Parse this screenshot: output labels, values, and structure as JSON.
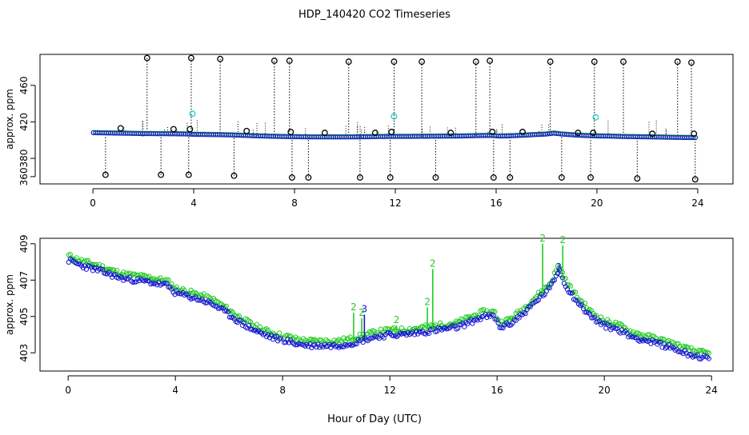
{
  "title": "HDP_140420  CO2 Timeseries",
  "xlabel": "Hour of Day (UTC)",
  "colors": {
    "black": "#000000",
    "green": "#22cc22",
    "blue": "#1515d0",
    "cyan": "#22cccc"
  },
  "chart_data": [
    {
      "type": "scatter",
      "name": "top-panel",
      "title": "HDP_140420  CO2 Timeseries",
      "xlabel": "",
      "ylabel": "approx. ppm",
      "xlim": [
        -2.1,
        25.4
      ],
      "ylim": [
        352,
        494
      ],
      "x_ticks": [
        0,
        4,
        8,
        12,
        16,
        20,
        24
      ],
      "y_ticks": [
        380,
        420,
        460,
        360
      ],
      "series": [
        {
          "name": "black spikes (high)",
          "color": "#000000",
          "x": [
            2.15,
            3.9,
            5.05,
            7.2,
            7.8,
            10.15,
            11.95,
            13.05,
            15.2,
            15.75,
            18.15,
            19.9,
            21.05,
            23.2,
            23.75
          ],
          "y": [
            490,
            490,
            489,
            487,
            487,
            486,
            486,
            486,
            486,
            487,
            486,
            486,
            486,
            486,
            485
          ]
        },
        {
          "name": "black spikes (low)",
          "color": "#000000",
          "x": [
            0.5,
            2.7,
            3.8,
            5.6,
            7.9,
            8.55,
            10.6,
            11.8,
            13.6,
            15.9,
            16.55,
            18.6,
            19.75,
            21.6,
            23.9
          ],
          "y": [
            362,
            362,
            362,
            361,
            359,
            359,
            359,
            359,
            359,
            359,
            359,
            359,
            359,
            358,
            357
          ]
        },
        {
          "name": "black mid points",
          "color": "#000000",
          "x": [
            1.1,
            3.2,
            3.85,
            6.1,
            7.85,
            9.2,
            11.2,
            11.85,
            14.2,
            15.85,
            17.05,
            19.25,
            19.85,
            22.2,
            23.85
          ],
          "y": [
            413,
            412,
            412,
            410,
            409,
            408,
            408,
            409,
            408,
            409,
            409,
            408,
            408,
            407,
            407
          ]
        },
        {
          "name": "cyan points",
          "color": "#22cccc",
          "x": [
            3.95,
            11.95,
            19.95
          ],
          "y": [
            429,
            426,
            425
          ]
        }
      ]
    },
    {
      "type": "line",
      "name": "bottom-panel",
      "xlabel": "Hour of Day (UTC)",
      "ylabel": "approx. ppm",
      "xlim": [
        -1.05,
        24.8
      ],
      "ylim": [
        402.0,
        409.3
      ],
      "x_ticks": [
        0,
        4,
        8,
        12,
        16,
        20,
        24
      ],
      "y_ticks": [
        403,
        405,
        407,
        409
      ],
      "series_labels": [
        "2",
        "3"
      ],
      "profile_x": [
        0,
        0.5,
        1,
        2,
        3,
        3.7,
        4,
        4.5,
        5,
        5.5,
        6,
        6.5,
        7,
        7.5,
        7.95,
        8.05,
        8.5,
        9,
        9.5,
        10,
        10.5,
        11,
        11.5,
        12,
        12.5,
        13,
        13.5,
        14,
        14.5,
        15,
        15.5,
        15.9,
        16.1,
        16.5,
        17,
        17.5,
        18,
        18.3,
        18.6,
        19,
        19.5,
        20,
        20.5,
        21,
        21.5,
        22,
        22.5,
        23,
        23.5,
        23.9
      ],
      "profile_y": [
        408.1,
        407.8,
        407.6,
        407.1,
        406.9,
        406.7,
        406.3,
        406.1,
        405.9,
        405.6,
        405.1,
        404.6,
        404.2,
        403.9,
        403.7,
        403.7,
        403.5,
        403.4,
        403.4,
        403.4,
        403.5,
        403.7,
        403.9,
        404.0,
        404.0,
        404.1,
        404.2,
        404.3,
        404.4,
        404.7,
        405.0,
        405.0,
        404.4,
        404.6,
        405.2,
        405.9,
        406.6,
        407.6,
        406.6,
        405.8,
        405.0,
        404.5,
        404.3,
        403.9,
        403.7,
        403.5,
        403.3,
        403.0,
        402.8,
        402.7
      ],
      "green_offset": 0.25,
      "spikes": [
        {
          "series": "2",
          "x": 10.65,
          "y": 405.2
        },
        {
          "series": "2",
          "x": 10.95,
          "y": 404.9
        },
        {
          "series": "3",
          "x": 11.05,
          "y": 405.1
        },
        {
          "series": "2",
          "x": 12.25,
          "y": 404.5
        },
        {
          "series": "2",
          "x": 13.4,
          "y": 405.5
        },
        {
          "series": "2",
          "x": 13.6,
          "y": 407.6
        },
        {
          "series": "2",
          "x": 17.7,
          "y": 409.0
        },
        {
          "series": "2",
          "x": 18.45,
          "y": 408.9
        },
        {
          "series": "3",
          "x": 18.3,
          "y": 407.4
        }
      ]
    }
  ]
}
